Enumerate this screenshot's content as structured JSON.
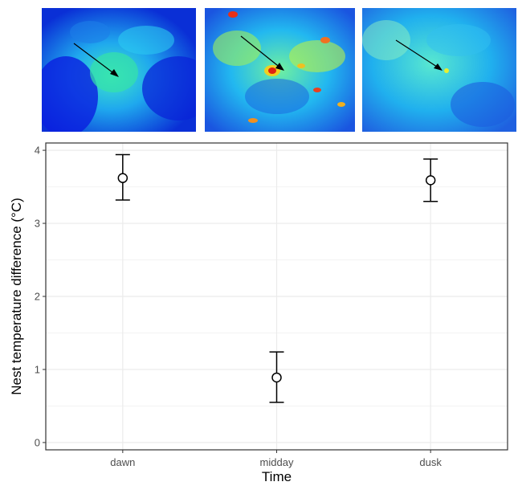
{
  "figure": {
    "thermal_images": [
      {
        "name": "dawn-thermal-image",
        "palette": "cool",
        "hot_spots": "low"
      },
      {
        "name": "midday-thermal-image",
        "palette": "warm",
        "hot_spots": "high"
      },
      {
        "name": "dusk-thermal-image",
        "palette": "cool",
        "hot_spots": "minimal"
      }
    ]
  },
  "chart_data": {
    "type": "scatter",
    "title": "",
    "xlabel": "Time",
    "ylabel": "Nest temperature difference (°C)",
    "categories": [
      "dawn",
      "midday",
      "dusk"
    ],
    "values": [
      3.62,
      0.89,
      3.59
    ],
    "error_low": [
      3.32,
      0.55,
      3.3
    ],
    "error_high": [
      3.94,
      1.24,
      3.88
    ],
    "ylim": [
      -0.1,
      4.1
    ],
    "yticks": [
      0,
      1,
      2,
      3,
      4
    ],
    "grid": true,
    "marker": "open-circle",
    "colors": {
      "marker_edge": "#000000",
      "marker_fill": "#ffffff",
      "grid": "#ebebeb",
      "panel_border": "#333333"
    }
  }
}
